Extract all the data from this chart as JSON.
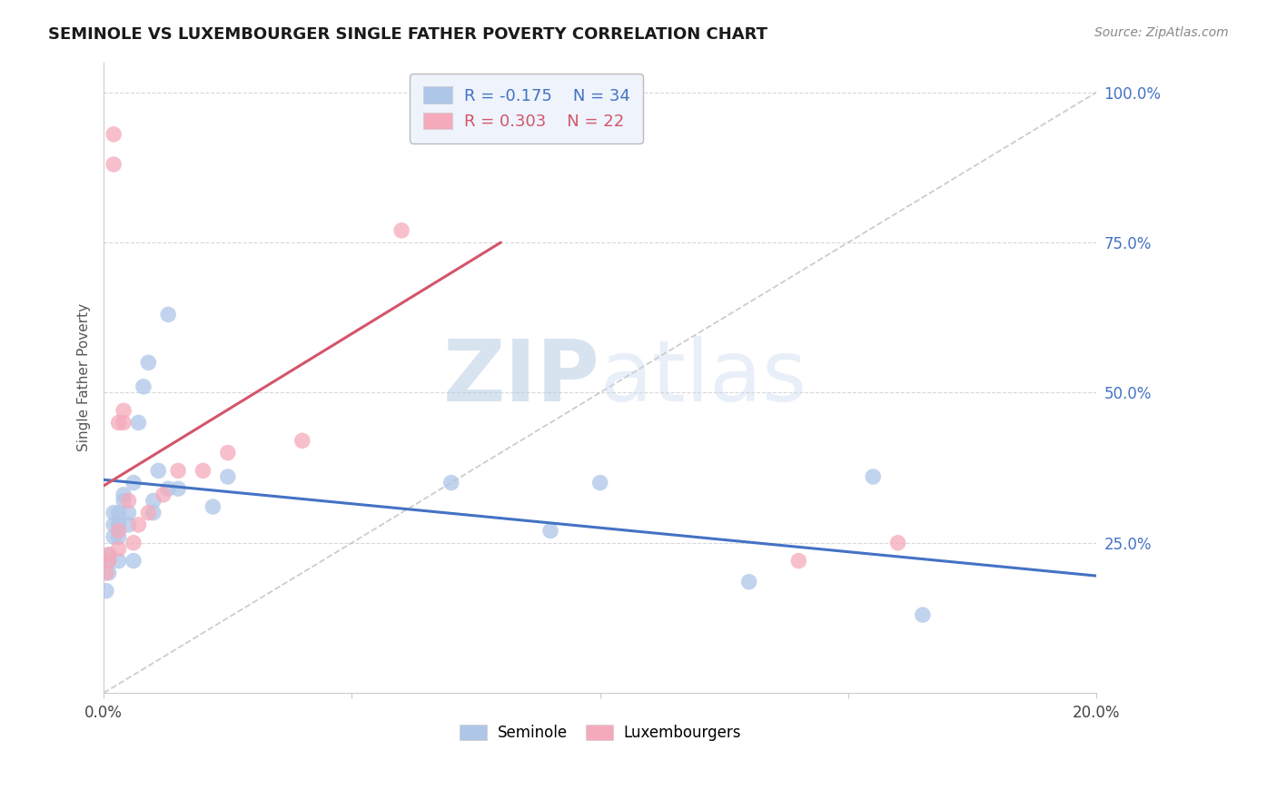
{
  "title": "SEMINOLE VS LUXEMBOURGER SINGLE FATHER POVERTY CORRELATION CHART",
  "source": "Source: ZipAtlas.com",
  "ylabel": "Single Father Poverty",
  "xlim": [
    0.0,
    0.2
  ],
  "ylim": [
    0.0,
    1.05
  ],
  "xticks": [
    0.0,
    0.05,
    0.1,
    0.15,
    0.2
  ],
  "xticklabels": [
    "0.0%",
    "",
    "",
    "",
    "20.0%"
  ],
  "yticks": [
    0.25,
    0.5,
    0.75,
    1.0
  ],
  "yticklabels": [
    "25.0%",
    "50.0%",
    "75.0%",
    "100.0%"
  ],
  "seminole_R": -0.175,
  "seminole_N": 34,
  "luxembourger_R": 0.303,
  "luxembourger_N": 22,
  "seminole_color": "#aec6e8",
  "luxembourger_color": "#f5aabb",
  "seminole_line_color": "#4472c4",
  "luxembourger_line_color": "#d4556a",
  "legend_box_color": "#eef3fc",
  "watermark_zip": "ZIP",
  "watermark_atlas": "atlas",
  "seminole_x": [
    0.0005,
    0.001,
    0.001,
    0.001,
    0.002,
    0.002,
    0.002,
    0.003,
    0.003,
    0.003,
    0.003,
    0.004,
    0.004,
    0.005,
    0.005,
    0.006,
    0.006,
    0.007,
    0.008,
    0.009,
    0.01,
    0.01,
    0.011,
    0.013,
    0.013,
    0.015,
    0.022,
    0.025,
    0.07,
    0.09,
    0.1,
    0.13,
    0.155,
    0.165
  ],
  "seminole_y": [
    0.17,
    0.2,
    0.22,
    0.23,
    0.26,
    0.28,
    0.3,
    0.22,
    0.26,
    0.28,
    0.3,
    0.32,
    0.33,
    0.28,
    0.3,
    0.35,
    0.22,
    0.45,
    0.51,
    0.55,
    0.32,
    0.3,
    0.37,
    0.34,
    0.63,
    0.34,
    0.31,
    0.36,
    0.35,
    0.27,
    0.35,
    0.185,
    0.36,
    0.13
  ],
  "luxembourger_x": [
    0.0005,
    0.001,
    0.001,
    0.002,
    0.002,
    0.003,
    0.003,
    0.003,
    0.004,
    0.004,
    0.005,
    0.006,
    0.007,
    0.009,
    0.012,
    0.015,
    0.02,
    0.025,
    0.04,
    0.06,
    0.14,
    0.16
  ],
  "luxembourger_y": [
    0.2,
    0.22,
    0.23,
    0.88,
    0.93,
    0.24,
    0.27,
    0.45,
    0.45,
    0.47,
    0.32,
    0.25,
    0.28,
    0.3,
    0.33,
    0.37,
    0.37,
    0.4,
    0.42,
    0.77,
    0.22,
    0.25
  ],
  "blue_line_x0": 0.0,
  "blue_line_y0": 0.355,
  "blue_line_x1": 0.2,
  "blue_line_y1": 0.195,
  "pink_line_x0": 0.0,
  "pink_line_y0": 0.345,
  "pink_line_x1": 0.08,
  "pink_line_y1": 0.75
}
